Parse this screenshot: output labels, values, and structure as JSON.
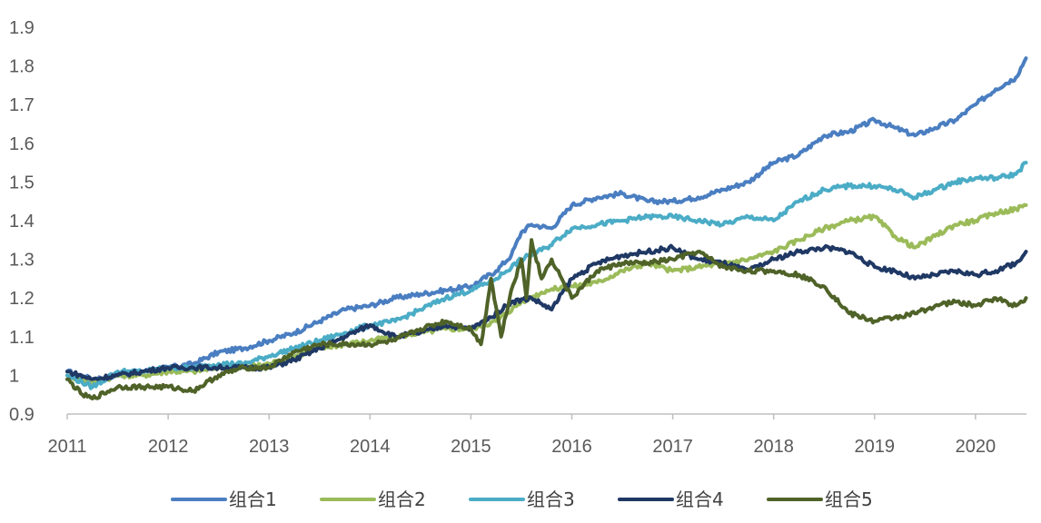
{
  "chart_data": {
    "type": "line",
    "title": "",
    "xlabel": "",
    "ylabel": "",
    "xlim": [
      2011,
      2020.5
    ],
    "ylim": [
      0.9,
      1.9
    ],
    "grid": false,
    "legend_position": "bottom",
    "x_ticks": [
      "2011",
      "2012",
      "2013",
      "2014",
      "2015",
      "2016",
      "2017",
      "2018",
      "2019",
      "2020"
    ],
    "y_ticks": [
      "0.9",
      "1",
      "1.1",
      "1.2",
      "1.3",
      "1.4",
      "1.5",
      "1.6",
      "1.7",
      "1.8",
      "1.9"
    ],
    "series": [
      {
        "name": "组合1",
        "color": "#4a7ec1",
        "x": [
          2011.0,
          2011.25,
          2011.5,
          2011.75,
          2012.0,
          2012.25,
          2012.5,
          2012.75,
          2013.0,
          2013.25,
          2013.5,
          2013.75,
          2014.0,
          2014.25,
          2014.5,
          2014.75,
          2015.0,
          2015.25,
          2015.4,
          2015.5,
          2015.6,
          2015.8,
          2016.0,
          2016.25,
          2016.5,
          2016.75,
          2017.0,
          2017.25,
          2017.5,
          2017.75,
          2018.0,
          2018.25,
          2018.5,
          2018.75,
          2019.0,
          2019.2,
          2019.4,
          2019.6,
          2019.8,
          2020.0,
          2020.2,
          2020.4,
          2020.5
        ],
        "y": [
          1.01,
          0.99,
          1.0,
          1.01,
          1.02,
          1.03,
          1.06,
          1.07,
          1.09,
          1.11,
          1.14,
          1.17,
          1.18,
          1.2,
          1.21,
          1.22,
          1.23,
          1.27,
          1.31,
          1.37,
          1.39,
          1.38,
          1.44,
          1.46,
          1.47,
          1.45,
          1.45,
          1.46,
          1.48,
          1.5,
          1.55,
          1.57,
          1.62,
          1.63,
          1.66,
          1.64,
          1.62,
          1.64,
          1.66,
          1.7,
          1.74,
          1.77,
          1.82
        ]
      },
      {
        "name": "组合2",
        "color": "#9bbb59",
        "x": [
          2011.0,
          2011.25,
          2011.5,
          2011.75,
          2012.0,
          2012.25,
          2012.5,
          2012.75,
          2013.0,
          2013.25,
          2013.5,
          2013.75,
          2014.0,
          2014.25,
          2014.5,
          2014.75,
          2015.0,
          2015.25,
          2015.5,
          2015.75,
          2016.0,
          2016.25,
          2016.5,
          2016.75,
          2017.0,
          2017.25,
          2017.5,
          2017.75,
          2018.0,
          2018.25,
          2018.5,
          2018.75,
          2019.0,
          2019.2,
          2019.4,
          2019.6,
          2019.8,
          2020.0,
          2020.2,
          2020.4,
          2020.5
        ],
        "y": [
          1.0,
          0.98,
          1.0,
          1.0,
          1.01,
          1.01,
          1.02,
          1.02,
          1.03,
          1.05,
          1.07,
          1.08,
          1.09,
          1.1,
          1.11,
          1.12,
          1.12,
          1.14,
          1.19,
          1.22,
          1.23,
          1.24,
          1.27,
          1.29,
          1.27,
          1.28,
          1.29,
          1.3,
          1.32,
          1.35,
          1.38,
          1.4,
          1.41,
          1.36,
          1.33,
          1.36,
          1.39,
          1.4,
          1.42,
          1.43,
          1.44
        ]
      },
      {
        "name": "组合3",
        "color": "#4bacc6",
        "x": [
          2011.0,
          2011.25,
          2011.5,
          2011.75,
          2012.0,
          2012.25,
          2012.5,
          2012.75,
          2013.0,
          2013.25,
          2013.5,
          2013.75,
          2014.0,
          2014.25,
          2014.5,
          2014.75,
          2015.0,
          2015.25,
          2015.5,
          2015.75,
          2016.0,
          2016.25,
          2016.5,
          2016.75,
          2017.0,
          2017.25,
          2017.5,
          2017.75,
          2018.0,
          2018.25,
          2018.5,
          2018.75,
          2019.0,
          2019.2,
          2019.4,
          2019.6,
          2019.8,
          2020.0,
          2020.2,
          2020.4,
          2020.5
        ],
        "y": [
          1.0,
          0.97,
          1.01,
          1.01,
          1.02,
          1.02,
          1.03,
          1.03,
          1.05,
          1.07,
          1.09,
          1.11,
          1.13,
          1.14,
          1.17,
          1.2,
          1.22,
          1.25,
          1.3,
          1.33,
          1.38,
          1.39,
          1.4,
          1.41,
          1.41,
          1.4,
          1.39,
          1.41,
          1.4,
          1.45,
          1.48,
          1.49,
          1.49,
          1.48,
          1.46,
          1.48,
          1.5,
          1.51,
          1.51,
          1.52,
          1.55
        ]
      },
      {
        "name": "组合4",
        "color": "#1f3864",
        "x": [
          2011.0,
          2011.25,
          2011.5,
          2011.75,
          2012.0,
          2012.25,
          2012.5,
          2012.75,
          2013.0,
          2013.25,
          2013.5,
          2013.75,
          2014.0,
          2014.25,
          2014.5,
          2014.75,
          2015.0,
          2015.2,
          2015.4,
          2015.6,
          2015.8,
          2016.0,
          2016.25,
          2016.5,
          2016.75,
          2017.0,
          2017.25,
          2017.5,
          2017.75,
          2018.0,
          2018.25,
          2018.5,
          2018.75,
          2019.0,
          2019.2,
          2019.4,
          2019.6,
          2019.8,
          2020.0,
          2020.2,
          2020.4,
          2020.5
        ],
        "y": [
          1.01,
          0.99,
          1.0,
          1.01,
          1.02,
          1.02,
          1.02,
          1.02,
          1.02,
          1.04,
          1.07,
          1.1,
          1.13,
          1.1,
          1.11,
          1.13,
          1.12,
          1.15,
          1.19,
          1.2,
          1.17,
          1.25,
          1.29,
          1.31,
          1.32,
          1.33,
          1.3,
          1.29,
          1.27,
          1.3,
          1.32,
          1.33,
          1.32,
          1.28,
          1.27,
          1.25,
          1.26,
          1.27,
          1.26,
          1.27,
          1.29,
          1.32
        ]
      },
      {
        "name": "组合5",
        "color": "#4f6228",
        "x": [
          2011.0,
          2011.15,
          2011.25,
          2011.5,
          2011.75,
          2012.0,
          2012.25,
          2012.5,
          2012.75,
          2013.0,
          2013.25,
          2013.5,
          2013.75,
          2014.0,
          2014.25,
          2014.5,
          2014.75,
          2015.0,
          2015.1,
          2015.2,
          2015.3,
          2015.4,
          2015.5,
          2015.55,
          2015.6,
          2015.7,
          2015.8,
          2015.9,
          2016.0,
          2016.25,
          2016.5,
          2016.75,
          2017.0,
          2017.25,
          2017.5,
          2017.75,
          2018.0,
          2018.25,
          2018.5,
          2018.75,
          2019.0,
          2019.2,
          2019.4,
          2019.6,
          2019.8,
          2020.0,
          2020.2,
          2020.4,
          2020.5
        ],
        "y": [
          0.99,
          0.95,
          0.94,
          0.97,
          0.97,
          0.97,
          0.96,
          1.0,
          1.02,
          1.02,
          1.06,
          1.08,
          1.08,
          1.08,
          1.09,
          1.12,
          1.14,
          1.12,
          1.08,
          1.25,
          1.1,
          1.22,
          1.3,
          1.2,
          1.35,
          1.25,
          1.3,
          1.25,
          1.2,
          1.27,
          1.29,
          1.29,
          1.3,
          1.32,
          1.28,
          1.27,
          1.27,
          1.26,
          1.23,
          1.16,
          1.14,
          1.15,
          1.16,
          1.18,
          1.19,
          1.18,
          1.2,
          1.18,
          1.2
        ]
      }
    ]
  }
}
